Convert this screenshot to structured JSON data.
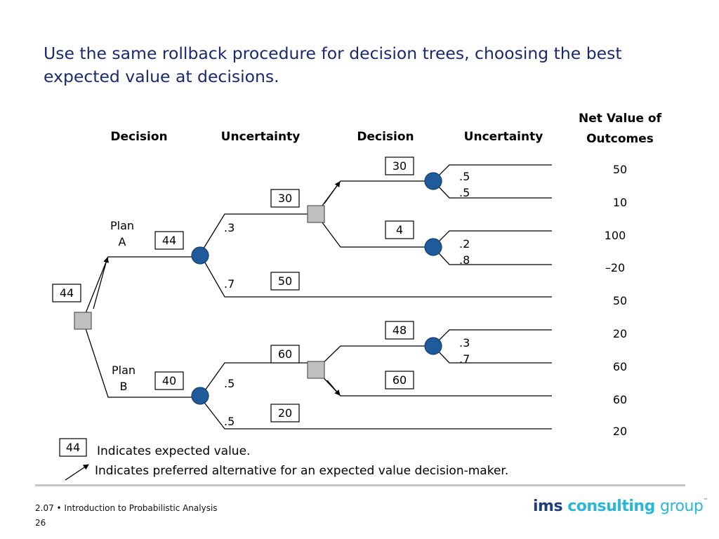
{
  "slide": {
    "title": "Use the same rollback procedure for decision trees, choosing the best expected value at decisions."
  },
  "columns": {
    "decision_1": "Decision",
    "uncertainty_1": "Uncertainty",
    "decision_2": "Decision",
    "uncertainty_2": "Uncertainty",
    "net_value_line1": "Net Value of",
    "net_value_line2": "Outcomes"
  },
  "tree": {
    "root_ev": "44",
    "plan_a": {
      "label_line1": "Plan",
      "label_line2": "A",
      "ev": "44"
    },
    "plan_b": {
      "label_line1": "Plan",
      "label_line2": "B",
      "ev": "40"
    },
    "a_branches": {
      "upper_prob": ".3",
      "upper_ev": "30",
      "lower_prob": ".7",
      "lower_ev": "50"
    },
    "a_decision": {
      "upper_ev": "30",
      "lower_ev": "4",
      "upper_probs": [
        ".5",
        ".5"
      ],
      "lower_probs": [
        ".2",
        ".8"
      ]
    },
    "b_branches": {
      "upper_prob": ".5",
      "upper_ev": "60",
      "lower_prob": ".5",
      "lower_ev": "20"
    },
    "b_decision": {
      "upper_ev": "48",
      "lower_ev": "60",
      "upper_probs": [
        ".3",
        ".7"
      ]
    },
    "outcomes": [
      "50",
      "10",
      "100",
      "–20",
      "50",
      "20",
      "60",
      "60",
      "20"
    ]
  },
  "legend": {
    "ev_sample": "44",
    "ev_text": "Indicates expected value.",
    "arrow_text": "Indicates preferred alternative for an expected value decision-maker."
  },
  "footer": {
    "course": "2.07 • Introduction to Probabilistic Analysis",
    "page": "26"
  },
  "logo": {
    "ims": "ims",
    "consulting": "consulting",
    "group": "group",
    "tm": "™"
  },
  "colors": {
    "title": "#1a2a6e",
    "chance_node": "#1f5a9a",
    "decision_node": "#c0c0c0",
    "logo_dark": "#1f3d7a",
    "logo_light": "#2bb5d8"
  }
}
